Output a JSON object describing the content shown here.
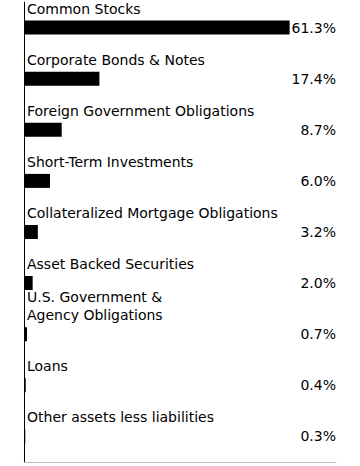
{
  "chart_data": {
    "type": "bar",
    "orientation": "horizontal",
    "categories": [
      "Common Stocks",
      "Corporate Bonds & Notes",
      "Foreign Government Obligations",
      "Short-Term Investments",
      "Collateralized Mortgage Obligations",
      "Asset Backed Securities",
      "U.S. Government &\nAgency Obligations",
      "Loans",
      "Other assets less liabilities"
    ],
    "values": [
      61.3,
      17.4,
      8.7,
      6.0,
      3.2,
      2.0,
      0.7,
      0.4,
      0.3
    ],
    "value_labels": [
      "61.3%",
      "17.4%",
      "8.7%",
      "6.0%",
      "3.2%",
      "2.0%",
      "0.7%",
      "0.4%",
      "0.3%"
    ],
    "color": "#000000",
    "xlim": [
      0,
      72
    ],
    "data_labels": true,
    "tick_labels": false,
    "grid": false
  }
}
